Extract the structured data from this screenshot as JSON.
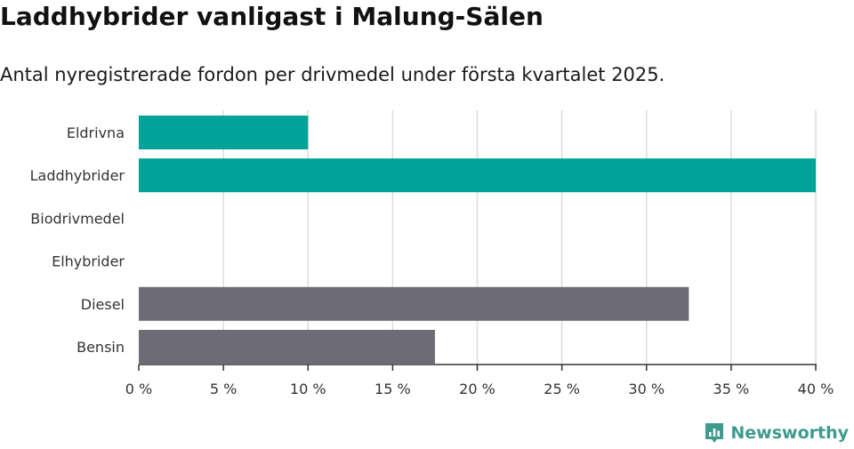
{
  "header": {
    "title": "Laddhybrider vanligast i Malung-Sälen",
    "subtitle": "Antal nyregistrerade fordon per drivmedel under första kvartalet 2025."
  },
  "colors": {
    "highlight": "#00a398",
    "neutral": "#6d6c74",
    "grid": "#dcdcdc",
    "axis": "#333333",
    "brand": "#3d9b8f"
  },
  "chart_data": {
    "type": "bar",
    "orientation": "horizontal",
    "categories": [
      "Eldrivna",
      "Laddhybrider",
      "Biodrivmedel",
      "Elhybrider",
      "Diesel",
      "Bensin"
    ],
    "values": [
      10,
      40,
      0,
      0,
      32.5,
      17.5
    ],
    "bar_colors": [
      "#00a398",
      "#00a398",
      "#00a398",
      "#00a398",
      "#6d6c74",
      "#6d6c74"
    ],
    "xlim": [
      0,
      40
    ],
    "xticks": [
      0,
      5,
      10,
      15,
      20,
      25,
      30,
      35,
      40
    ],
    "xtick_labels": [
      "0 %",
      "5 %",
      "10 %",
      "15 %",
      "20 %",
      "25 %",
      "30 %",
      "35 %",
      "40 %"
    ],
    "grid": "vertical",
    "legend": "none"
  },
  "footer": {
    "brand": "Newsworthy",
    "brand_icon": "newsworthy-logo-icon"
  }
}
